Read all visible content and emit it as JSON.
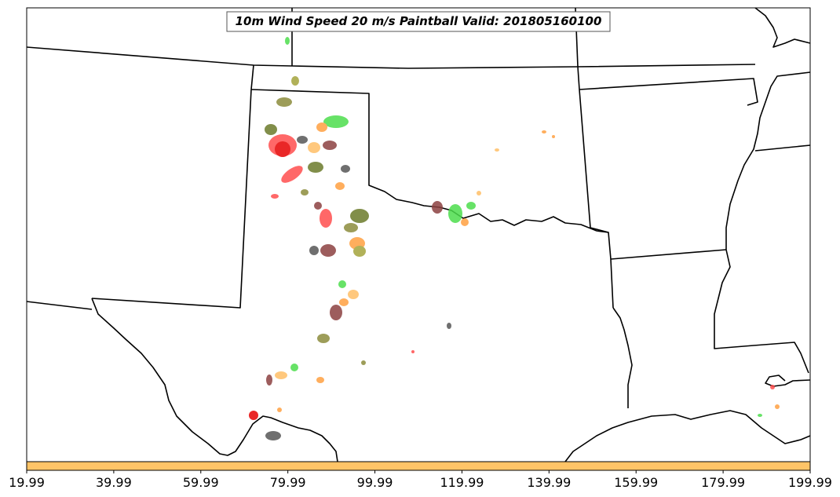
{
  "title": "10m Wind Speed 20 m/s Paintball Valid: 201805160100",
  "colorbar": {
    "color": "#ffc467",
    "ticks": [
      "19.99",
      "39.99",
      "59.99",
      "79.99",
      "99.99",
      "119.99",
      "139.99",
      "159.99",
      "179.99",
      "199.99"
    ]
  },
  "paint_colors": {
    "red": "#ff4d4d",
    "orange": "#ffa040",
    "light_orange": "#ffbf66",
    "green": "#4cdd4c",
    "olive": "#8c8c3c",
    "brown": "#8c4040",
    "gray": "#555555",
    "dark_olive": "#6b7a2a"
  },
  "map_region": "Southern Plains / Texas / Oklahoma / Louisiana"
}
